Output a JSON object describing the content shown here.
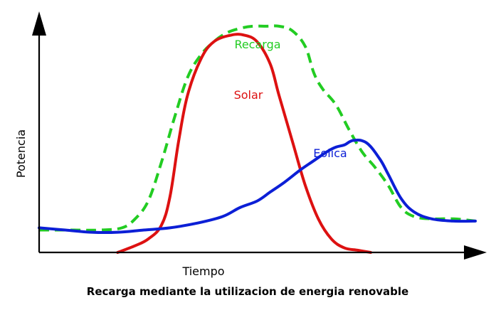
{
  "chart_data": {
    "type": "line",
    "title": "Recarga mediante la utilizacion de energia renovable",
    "xlabel": "Tiempo",
    "ylabel": "Potencia",
    "xlim": [
      0,
      100
    ],
    "ylim": [
      0,
      100
    ],
    "grid": false,
    "ticks": false,
    "series": [
      {
        "name": "Recarga",
        "color": "#22cc22",
        "style": "dashed",
        "x": [
          0,
          8,
          14,
          19,
          22,
          25,
          28,
          31,
          34,
          37,
          40,
          43,
          46,
          49,
          52,
          55,
          58,
          61,
          63,
          65,
          68,
          71,
          74,
          77,
          80,
          83,
          86,
          90,
          95,
          100
        ],
        "y": [
          10,
          10,
          10,
          11,
          15,
          23,
          40,
          60,
          78,
          88,
          94,
          98,
          100,
          101,
          101,
          101,
          99,
          92,
          80,
          73,
          66,
          55,
          45,
          38,
          30,
          20,
          16,
          15,
          15,
          14
        ]
      },
      {
        "name": "Solar",
        "color": "#dd1111",
        "style": "solid",
        "x": [
          18,
          22,
          25,
          28,
          30,
          32,
          34,
          37,
          40,
          44,
          47,
          50,
          53,
          55,
          58,
          61,
          64,
          67,
          70,
          73,
          76
        ],
        "y": [
          0,
          3,
          6,
          12,
          25,
          50,
          70,
          86,
          94,
          97,
          97,
          94,
          84,
          70,
          50,
          30,
          15,
          6,
          2,
          1,
          0
        ]
      },
      {
        "name": "Eolica",
        "color": "#0c1fd6",
        "style": "solid",
        "x": [
          0,
          6,
          12,
          18,
          24,
          30,
          36,
          42,
          46,
          50,
          53,
          56,
          60,
          63,
          66,
          68,
          70,
          72,
          75,
          78,
          80,
          83,
          86,
          90,
          95,
          100
        ],
        "y": [
          11,
          10,
          9,
          9,
          10,
          11,
          13,
          16,
          20,
          23,
          27,
          31,
          37,
          41,
          45,
          47,
          48,
          50,
          49,
          42,
          35,
          24,
          18,
          15,
          14,
          14
        ]
      }
    ]
  }
}
